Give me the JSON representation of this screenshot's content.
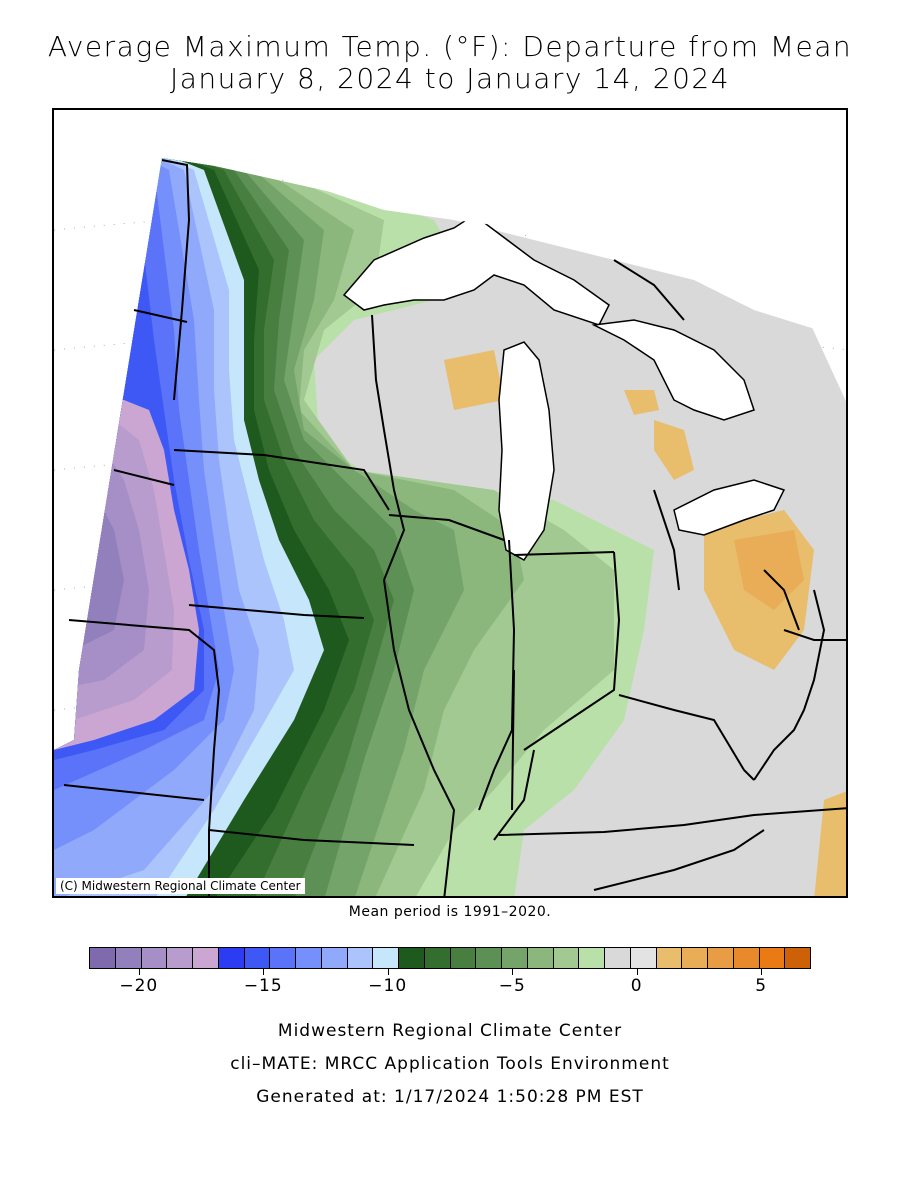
{
  "title_line1": "Average Maximum Temp. (°F): Departure from Mean",
  "title_line2": "January 8, 2024 to January 14, 2024",
  "map": {
    "copyright": "(C) Midwestern Regional Climate Center",
    "region": "Upper Midwest / Great Lakes",
    "shading_note": "cold (blue/purple) in west, near-normal (gray) east, slightly warm (orange) in Ohio/Michigan"
  },
  "mean_period": "Mean period is 1991–2020.",
  "legend": {
    "colors": [
      "#7f6aae",
      "#9280bd",
      "#a58fc6",
      "#b89ccd",
      "#cca6d3",
      "#2c3cf2",
      "#3e58f6",
      "#5a73f8",
      "#7690fb",
      "#91a9fb",
      "#abc4fc",
      "#c6e6fc",
      "#1e5a1e",
      "#336e2e",
      "#487f40",
      "#5d9054",
      "#74a46a",
      "#8bb77d",
      "#a1c991",
      "#b9e0a9",
      "#d9d9d9",
      "#e3e3e3",
      "#e8bd6c",
      "#e9ad58",
      "#e89c43",
      "#e88a2c",
      "#e97a14",
      "#cd6108"
    ],
    "tick_labels": [
      "−20",
      "−15",
      "−10",
      "−5",
      "0",
      "5"
    ],
    "tick_values": [
      -20,
      -15,
      -10,
      -5,
      0,
      5
    ],
    "min": -22,
    "max": 7
  },
  "footer": {
    "line1": "Midwestern Regional Climate Center",
    "line2": "cli–MATE: MRCC Application Tools Environment",
    "line3": "Generated at: 1/17/2024 1:50:28 PM EST"
  }
}
